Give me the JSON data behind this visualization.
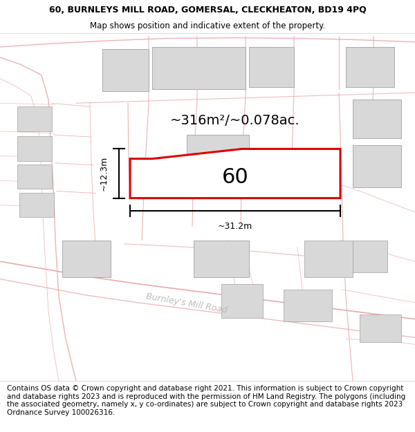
{
  "title_line1": "60, BURNLEYS MILL ROAD, GOMERSAL, CLECKHEATON, BD19 4PQ",
  "title_line2": "Map shows position and indicative extent of the property.",
  "footer_text": "Contains OS data © Crown copyright and database right 2021. This information is subject to Crown copyright and database rights 2023 and is reproduced with the permission of HM Land Registry. The polygons (including the associated geometry, namely x, y co-ordinates) are subject to Crown copyright and database rights 2023 Ordnance Survey 100026316.",
  "area_label": "~316m²/~0.078ac.",
  "property_number": "60",
  "dim_width": "~31.2m",
  "dim_height": "~12.3m",
  "road_label": "Burnley's Mill Road",
  "map_bg": "#ffffff",
  "building_fill": "#d8d8d8",
  "building_stroke": "#a0a0a0",
  "plot_line_color": "#e8a0a0",
  "highlight_stroke": "#dd0000",
  "highlight_fill": "#ffffff",
  "dim_line_color": "#000000",
  "title_fontsize": 9.0,
  "footer_fontsize": 7.5,
  "road_label_color": "#bbbbbb",
  "road_label_fontsize": 9
}
